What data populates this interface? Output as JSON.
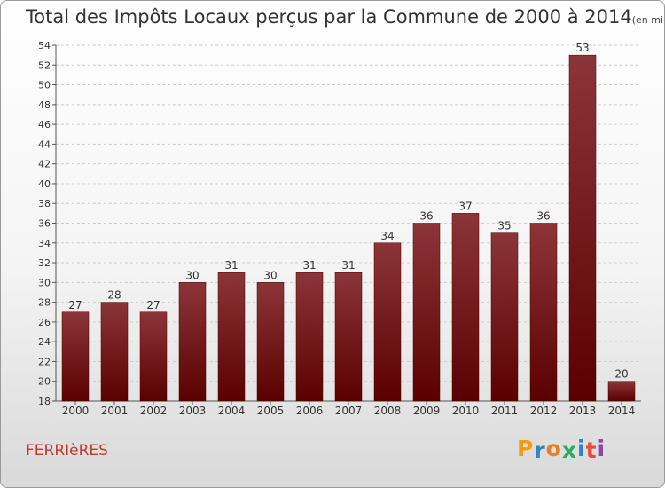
{
  "title": {
    "main": "Total des Impôts Locaux perçus par la Commune de 2000 à 2014",
    "unit": "(en milliers d'€)"
  },
  "commune": "FERRIèRES",
  "brand": {
    "letters": [
      "P",
      "r",
      "o",
      "x",
      "i",
      "t",
      "i"
    ],
    "colors": [
      "#f39c12",
      "#2e86c1",
      "#e67e22",
      "#27ae60",
      "#2e86c1",
      "#e74c3c",
      "#8e44ad"
    ]
  },
  "colors": {
    "bar_top": "#8c3538",
    "bar_bottom": "#5a0000",
    "grid": "#cccccc",
    "axis_text": "#333333"
  },
  "chart_data": {
    "type": "bar",
    "categories": [
      "2000",
      "2001",
      "2002",
      "2003",
      "2004",
      "2005",
      "2006",
      "2007",
      "2008",
      "2009",
      "2010",
      "2011",
      "2012",
      "2013",
      "2014"
    ],
    "values": [
      27,
      28,
      27,
      30,
      31,
      30,
      31,
      31,
      34,
      36,
      37,
      35,
      36,
      53,
      20
    ],
    "title": "Total des Impôts Locaux perçus par la Commune de 2000 à 2014",
    "xlabel": "",
    "ylabel": "",
    "ylim": [
      18,
      54
    ],
    "yticks": [
      18,
      20,
      22,
      24,
      26,
      28,
      30,
      32,
      34,
      36,
      38,
      40,
      42,
      44,
      46,
      48,
      50,
      52,
      54
    ],
    "grid": true,
    "legend": "none"
  }
}
